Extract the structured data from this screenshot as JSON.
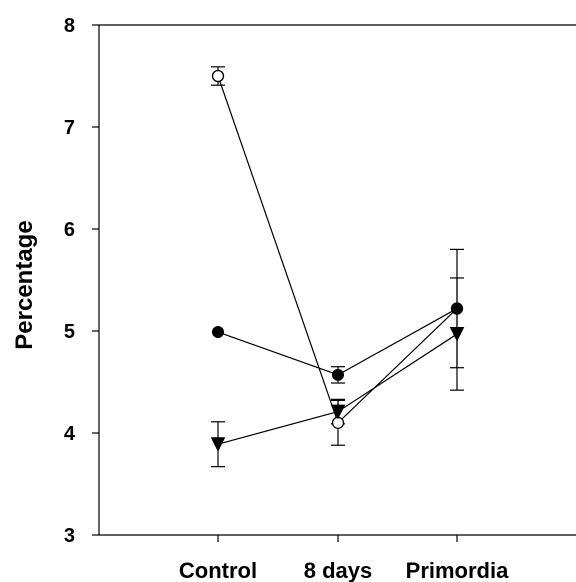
{
  "chart_data": {
    "type": "line",
    "title": "",
    "xlabel": "",
    "ylabel": "Percentage",
    "categories": [
      "Control",
      "8 days",
      "Primordia"
    ],
    "ylim": [
      3,
      8
    ],
    "yticks": [
      "3",
      "4",
      "5",
      "6",
      "7",
      "8"
    ],
    "grid": false,
    "legend": "none",
    "series": [
      {
        "marker": "open-circle",
        "values": [
          7.5,
          4.1,
          5.22
        ],
        "errors": [
          0.09,
          0.22,
          0.58
        ]
      },
      {
        "marker": "filled-circle",
        "values": [
          4.99,
          4.57,
          5.22
        ],
        "errors": [
          0.0,
          0.08,
          0.0
        ]
      },
      {
        "marker": "filled-triangle-down",
        "values": [
          3.89,
          4.21,
          4.97
        ],
        "errors": [
          0.22,
          0.12,
          0.55
        ]
      }
    ],
    "colors": {
      "line": "#000000",
      "marker_fill": "#000000",
      "open_marker_fill": "#ffffff",
      "background": "#ffffff"
    }
  }
}
